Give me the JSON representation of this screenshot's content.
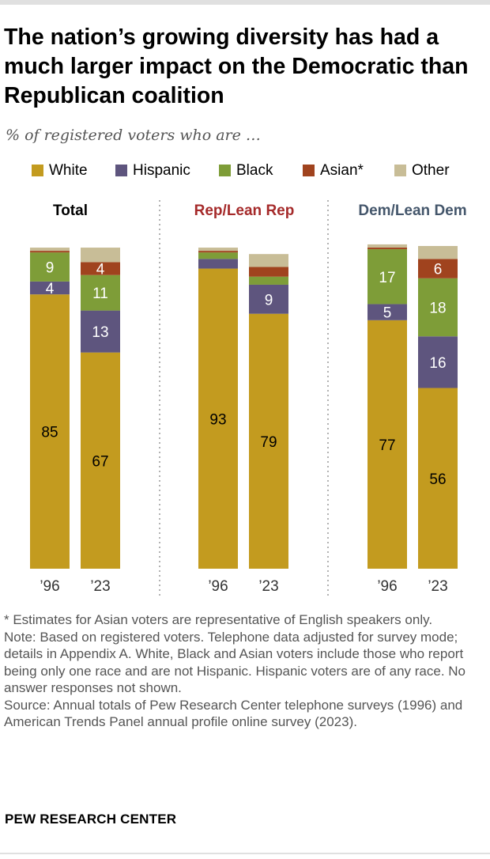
{
  "title": "The nation’s growing diversity has had a much larger impact on the Democratic than Republican coalition",
  "subtitle": "% of registered voters who are …",
  "legend": [
    {
      "label": "White",
      "color": "#c39b1f"
    },
    {
      "label": "Hispanic",
      "color": "#5e557e"
    },
    {
      "label": "Black",
      "color": "#7e9d38"
    },
    {
      "label": "Asian*",
      "color": "#a0431e"
    },
    {
      "label": "Other",
      "color": "#c8bd97"
    }
  ],
  "chart_data": {
    "type": "bar",
    "stacked": true,
    "ylim": [
      0,
      100
    ],
    "grid": false,
    "legend_placement": "top",
    "series_order": [
      "White",
      "Hispanic",
      "Black",
      "Asian*",
      "Other"
    ],
    "colors": {
      "White": "#c39b1f",
      "Hispanic": "#5e557e",
      "Black": "#7e9d38",
      "Asian*": "#a0431e",
      "Other": "#c8bd97"
    },
    "panels": [
      {
        "title": "Total",
        "title_color": "#000000",
        "bars": [
          {
            "category": "’96",
            "values": {
              "White": 85,
              "Hispanic": 4,
              "Black": 9,
              "Asian*": 0.5,
              "Other": 1
            },
            "labels": {
              "White": "85",
              "Hispanic": "4",
              "Black": "9"
            }
          },
          {
            "category": "’23",
            "values": {
              "White": 67,
              "Hispanic": 13,
              "Black": 11,
              "Asian*": 4,
              "Other": 4.5
            },
            "labels": {
              "White": "67",
              "Hispanic": "13",
              "Black": "11",
              "Asian*": "4"
            }
          }
        ]
      },
      {
        "title": "Rep/Lean Rep",
        "title_color": "#a52a2a",
        "bars": [
          {
            "category": "’96",
            "values": {
              "White": 93,
              "Hispanic": 3,
              "Black": 2,
              "Asian*": 0.5,
              "Other": 1
            },
            "labels": {
              "White": "93"
            }
          },
          {
            "category": "’23",
            "values": {
              "White": 79,
              "Hispanic": 9,
              "Black": 2.5,
              "Asian*": 3,
              "Other": 4
            },
            "labels": {
              "White": "79",
              "Hispanic": "9"
            }
          }
        ]
      },
      {
        "title": "Dem/Lean Dem",
        "title_color": "#44566b",
        "bars": [
          {
            "category": "’96",
            "values": {
              "White": 77,
              "Hispanic": 5,
              "Black": 17,
              "Asian*": 0.5,
              "Other": 1
            },
            "labels": {
              "White": "77",
              "Hispanic": "5",
              "Black": "17"
            }
          },
          {
            "category": "’23",
            "values": {
              "White": 56,
              "Hispanic": 16,
              "Black": 18,
              "Asian*": 6,
              "Other": 4
            },
            "labels": {
              "White": "56",
              "Hispanic": "16",
              "Black": "18",
              "Asian*": "6"
            }
          }
        ]
      }
    ]
  },
  "notes": {
    "asterisk": "* Estimates for Asian voters are representative of English speakers only.",
    "note": "Note: Based on registered voters. Telephone data adjusted for survey mode; details in Appendix A. White, Black and Asian voters include those who report being only one race and are not Hispanic. Hispanic voters are of any race. No answer responses not shown.",
    "source": "Source: Annual totals of Pew Research Center telephone surveys (1996) and American Trends Panel annual profile online survey (2023)."
  },
  "brand": "PEW RESEARCH CENTER"
}
